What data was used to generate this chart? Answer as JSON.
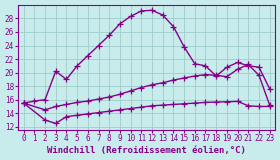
{
  "xlabel": "Windchill (Refroidissement éolien,°C)",
  "bg_color": "#c8ecec",
  "grid_color": "#a0cccc",
  "line_color": "#880088",
  "xlim": [
    -0.5,
    23.5
  ],
  "ylim": [
    11.5,
    30.0
  ],
  "xticks": [
    0,
    1,
    2,
    3,
    4,
    5,
    6,
    7,
    8,
    9,
    10,
    11,
    12,
    13,
    14,
    15,
    16,
    17,
    18,
    19,
    20,
    21,
    22,
    23
  ],
  "yticks": [
    12,
    14,
    16,
    18,
    20,
    22,
    24,
    26,
    28
  ],
  "curve1_x": [
    0,
    1,
    2,
    3,
    4,
    5,
    6,
    7,
    8,
    9,
    10,
    11,
    12,
    13,
    14,
    15,
    16,
    17,
    18,
    19,
    20,
    21,
    22,
    23
  ],
  "curve1_y": [
    15.5,
    15.8,
    16.0,
    20.2,
    19.0,
    21.0,
    22.5,
    24.0,
    25.5,
    27.2,
    28.3,
    29.1,
    29.2,
    28.5,
    26.8,
    23.8,
    21.3,
    21.0,
    19.5,
    20.8,
    21.5,
    21.0,
    20.8,
    17.6
  ],
  "curve2_x": [
    0,
    2,
    3,
    4,
    5,
    6,
    7,
    8,
    9,
    10,
    11,
    12,
    13,
    14,
    15,
    16,
    17,
    18,
    19,
    20,
    21,
    22,
    23
  ],
  "curve2_y": [
    15.5,
    14.5,
    15.0,
    15.3,
    15.6,
    15.8,
    16.1,
    16.4,
    16.8,
    17.3,
    17.8,
    18.2,
    18.5,
    18.9,
    19.2,
    19.5,
    19.7,
    19.6,
    19.4,
    20.5,
    21.2,
    19.6,
    15.2
  ],
  "curve3_x": [
    0,
    2,
    3,
    4,
    5,
    6,
    7,
    8,
    9,
    10,
    11,
    12,
    13,
    14,
    15,
    16,
    17,
    18,
    19,
    20,
    21,
    22,
    23
  ],
  "curve3_y": [
    15.5,
    13.0,
    12.5,
    13.5,
    13.7,
    13.9,
    14.1,
    14.3,
    14.5,
    14.7,
    14.9,
    15.1,
    15.2,
    15.3,
    15.4,
    15.5,
    15.6,
    15.65,
    15.7,
    15.75,
    15.1,
    15.0,
    15.0
  ],
  "marker": "+",
  "markersize": 4,
  "linewidth": 1.0,
  "tick_fontsize": 5.5,
  "label_fontsize": 6.5
}
